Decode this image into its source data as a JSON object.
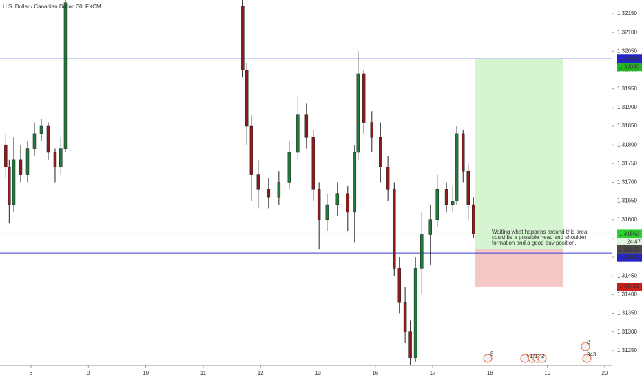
{
  "chart_data": {
    "type": "candlestick",
    "title": "U.S. Dollar / Canadian Dollar, 30, FXCM",
    "xlim": [
      -0.54,
      10.12
    ],
    "xticks": [
      {
        "value": 0,
        "label": "6"
      },
      {
        "value": 1,
        "label": "9"
      },
      {
        "value": 2,
        "label": "10"
      },
      {
        "value": 3,
        "label": "11"
      },
      {
        "value": 4,
        "label": "12"
      },
      {
        "value": 5,
        "label": "13"
      },
      {
        "value": 6,
        "label": "16"
      },
      {
        "value": 7,
        "label": "17"
      },
      {
        "value": 8,
        "label": "18"
      },
      {
        "value": 9,
        "label": "19"
      },
      {
        "value": 10,
        "label": "20"
      }
    ],
    "ylim": [
      1.31211,
      1.32187
    ],
    "yticks": [
      {
        "value": 1.3125,
        "label": "1.31250"
      },
      {
        "value": 1.313,
        "label": "1.31300"
      },
      {
        "value": 1.3135,
        "label": "1.31350"
      },
      {
        "value": 1.314,
        "label": "1.31400"
      },
      {
        "value": 1.3145,
        "label": "1.31450"
      },
      {
        "value": 1.315,
        "label": "1.31500"
      },
      {
        "value": 1.3155,
        "label": "1.31550"
      },
      {
        "value": 1.316,
        "label": "1.31600"
      },
      {
        "value": 1.3165,
        "label": "1.31650"
      },
      {
        "value": 1.317,
        "label": "1.31700"
      },
      {
        "value": 1.3175,
        "label": "1.31750"
      },
      {
        "value": 1.318,
        "label": "1.31800"
      },
      {
        "value": 1.3185,
        "label": "1.31850"
      },
      {
        "value": 1.319,
        "label": "1.31900"
      },
      {
        "value": 1.3195,
        "label": "1.31950"
      },
      {
        "value": 1.32,
        "label": "1.32000"
      },
      {
        "value": 1.3205,
        "label": "1.32050"
      },
      {
        "value": 1.321,
        "label": "1.32100"
      },
      {
        "value": 1.3215,
        "label": "1.32150"
      }
    ],
    "up_color": "#1e7b3c",
    "down_color": "#8a1c1c",
    "x": [
      -0.44,
      -0.38,
      -0.3,
      -0.18,
      -0.06,
      0.06,
      0.18,
      0.3,
      0.42,
      0.52,
      0.6,
      3.69,
      3.76,
      3.84,
      3.96,
      4.14,
      4.32,
      4.5,
      4.65,
      4.8,
      4.92,
      5.02,
      5.16,
      5.34,
      5.52,
      5.64,
      5.7,
      5.8,
      5.94,
      6.09,
      6.22,
      6.33,
      6.42,
      6.52,
      6.61,
      6.7,
      6.81,
      6.96,
      7.08,
      7.24,
      7.35,
      7.42,
      7.53,
      7.62,
      7.71
    ],
    "open": [
      1.318,
      1.3174,
      1.3164,
      1.3176,
      1.3172,
      1.3179,
      1.3183,
      1.3185,
      1.3178,
      1.3174,
      1.3179,
      1.3217,
      1.32,
      1.3185,
      1.3172,
      1.3168,
      1.3166,
      1.317,
      1.3178,
      1.3188,
      1.3182,
      1.3168,
      1.316,
      1.3164,
      1.3167,
      1.3162,
      1.3178,
      1.3199,
      1.3186,
      1.3182,
      1.3174,
      1.3168,
      1.3147,
      1.3138,
      1.313,
      1.3123,
      1.3147,
      1.3156,
      1.316,
      1.3168,
      1.3164,
      1.3165,
      1.3183,
      1.3173,
      1.3164
    ],
    "close": [
      1.3174,
      1.3164,
      1.3176,
      1.3172,
      1.3179,
      1.3183,
      1.3185,
      1.3178,
      1.3174,
      1.3179,
      1.3218,
      1.32,
      1.3185,
      1.3172,
      1.3168,
      1.3166,
      1.317,
      1.3178,
      1.3188,
      1.3182,
      1.3168,
      1.316,
      1.3164,
      1.3167,
      1.3162,
      1.3178,
      1.3199,
      1.3186,
      1.3182,
      1.3174,
      1.3168,
      1.3147,
      1.3138,
      1.313,
      1.3123,
      1.3147,
      1.3156,
      1.316,
      1.3168,
      1.3164,
      1.3165,
      1.3183,
      1.3173,
      1.3164,
      1.31562
    ],
    "high": [
      1.3183,
      1.3176,
      1.3182,
      1.318,
      1.3181,
      1.3186,
      1.3187,
      1.3186,
      1.3179,
      1.3182,
      1.3219,
      1.3219,
      1.3202,
      1.3188,
      1.3176,
      1.3171,
      1.3173,
      1.3181,
      1.3193,
      1.3191,
      1.3184,
      1.317,
      1.3167,
      1.317,
      1.3169,
      1.318,
      1.3205,
      1.32,
      1.3189,
      1.3186,
      1.3177,
      1.317,
      1.315,
      1.3142,
      1.3133,
      1.315,
      1.3162,
      1.3164,
      1.3172,
      1.317,
      1.3169,
      1.3185,
      1.3184,
      1.3175,
      1.3166
    ],
    "low": [
      1.3171,
      1.3159,
      1.3162,
      1.317,
      1.317,
      1.3177,
      1.3181,
      1.3176,
      1.317,
      1.3172,
      1.3178,
      1.3198,
      1.318,
      1.3165,
      1.3163,
      1.3163,
      1.3164,
      1.3168,
      1.3176,
      1.3179,
      1.3165,
      1.3152,
      1.3157,
      1.3161,
      1.3157,
      1.3154,
      1.3176,
      1.3183,
      1.3178,
      1.317,
      1.3165,
      1.3145,
      1.3135,
      1.3127,
      1.3121,
      1.3122,
      1.314,
      1.3148,
      1.3158,
      1.3162,
      1.3162,
      1.3164,
      1.317,
      1.316,
      1.3155
    ],
    "hlines": [
      {
        "value": 1.3203,
        "color": "#3c3cd6"
      },
      {
        "value": 1.31511,
        "color": "#3c3cd6"
      },
      {
        "value": 1.31562,
        "color": "#9ee69e"
      }
    ],
    "position": {
      "x": [
        7.74,
        9.28
      ],
      "target": 1.3203,
      "entry": 1.31521,
      "stop": 1.31421,
      "profit_color": "#d4f5cf",
      "loss_color": "#f5c8c8"
    },
    "price_labels": [
      {
        "value": 1.3203,
        "label": "1.32030",
        "color": "#2424c8"
      },
      {
        "value": 1.3203,
        "label": "1.32030",
        "color": "#1fb81f"
      },
      {
        "value": 1.31562,
        "label": "1.31562",
        "color": "#2fcf2f"
      },
      {
        "value": 1.31521,
        "label": "1.31521",
        "color": "#4a4a4a"
      },
      {
        "value": 1.31511,
        "label": "1.31511",
        "color": "#2424c8"
      },
      {
        "value": 1.31421,
        "label": "1.31421",
        "color": "#c81e1e"
      }
    ],
    "countdown": "24:47",
    "annotation": [
      "Waiting what happens around this area,",
      "could be a possible head and shoulder",
      "formation and a good buy position."
    ],
    "events": [
      "8",
      "5",
      "11",
      "12",
      "2",
      "2",
      "343"
    ]
  }
}
